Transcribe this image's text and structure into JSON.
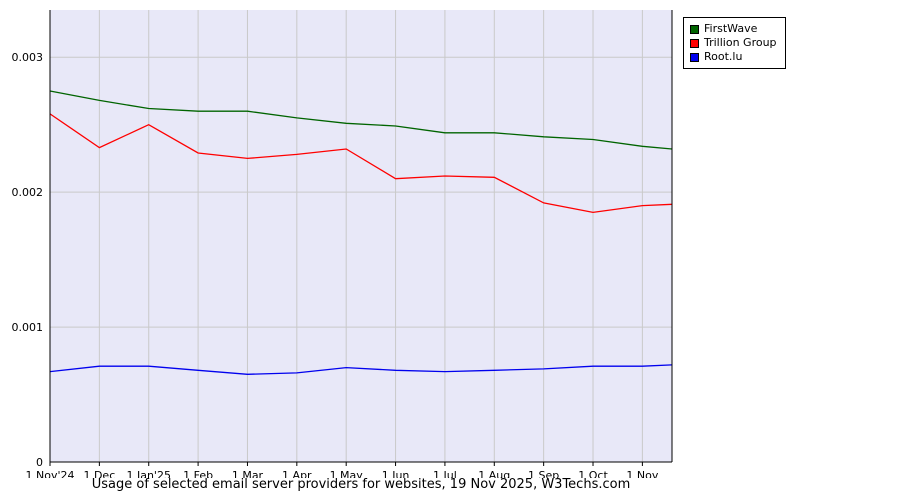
{
  "title": "Usage of selected email server providers for websites, 19 Nov 2025, W3Techs.com",
  "chart_data": {
    "type": "line",
    "x_tick_labels": [
      "1 Nov'24",
      "1 Dec",
      "1 Jan'25",
      "1 Feb",
      "1 Mar",
      "1 Apr",
      "1 May",
      "1 Jun",
      "1 Jul",
      "1 Aug",
      "1 Sep",
      "1 Oct",
      "1 Nov"
    ],
    "x": [
      0,
      1,
      2,
      3,
      4,
      5,
      6,
      7,
      8,
      9,
      10,
      11,
      12,
      12.6
    ],
    "y_ticks": [
      0,
      0.001,
      0.002,
      0.003
    ],
    "y_tick_labels": [
      "0",
      "0.001",
      "0.002",
      "0.003"
    ],
    "xlim": [
      0,
      12.6
    ],
    "ylim": [
      0,
      0.00335
    ],
    "grid": true,
    "legend_position": "top-right",
    "plot_bg_color": "#e8e8f8",
    "grid_color": "#c9c9c9",
    "axis_color": "#000000",
    "series": [
      {
        "name": "FirstWave",
        "color": "#006400",
        "values": [
          0.00275,
          0.00268,
          0.00262,
          0.0026,
          0.0026,
          0.00255,
          0.00251,
          0.00249,
          0.00244,
          0.00244,
          0.00241,
          0.00239,
          0.00234,
          0.00232
        ]
      },
      {
        "name": "Trillion Group",
        "color": "#ff0000",
        "values": [
          0.00258,
          0.00233,
          0.0025,
          0.00229,
          0.00225,
          0.00228,
          0.00232,
          0.0021,
          0.00212,
          0.00211,
          0.00192,
          0.00185,
          0.0019,
          0.00191
        ]
      },
      {
        "name": "Root.lu",
        "color": "#0000ee",
        "values": [
          0.00067,
          0.00071,
          0.00071,
          0.00068,
          0.00065,
          0.00066,
          0.0007,
          0.00068,
          0.00067,
          0.00068,
          0.00069,
          0.00071,
          0.00071,
          0.00072
        ]
      }
    ]
  }
}
